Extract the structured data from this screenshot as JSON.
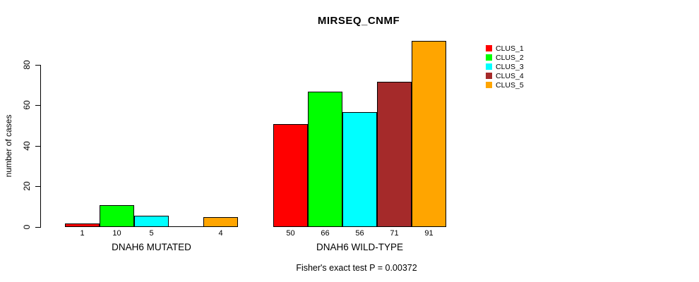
{
  "chart_data": {
    "type": "bar",
    "title": "MIRSEQ_CNMF",
    "ylabel": "number of cases",
    "yticks": [
      0,
      20,
      40,
      60,
      80
    ],
    "ylim": [
      0,
      92
    ],
    "grid": false,
    "legend_position": "right",
    "series": [
      {
        "name": "CLUS_1",
        "color": "#ff0000"
      },
      {
        "name": "CLUS_2",
        "color": "#00ff00"
      },
      {
        "name": "CLUS_3",
        "color": "#00ffff"
      },
      {
        "name": "CLUS_4",
        "color": "#a52a2a"
      },
      {
        "name": "CLUS_5",
        "color": "#ffa500"
      }
    ],
    "groups": [
      {
        "label": "DNAH6 MUTATED",
        "values": [
          1,
          10,
          5,
          0,
          4
        ],
        "bar_labels": [
          "1",
          "10",
          "5",
          "",
          "4"
        ]
      },
      {
        "label": "DNAH6 WILD-TYPE",
        "values": [
          50,
          66,
          56,
          71,
          91
        ],
        "bar_labels": [
          "50",
          "66",
          "56",
          "71",
          "91"
        ]
      }
    ],
    "annotation": "Fisher's exact test P = 0.00372"
  }
}
